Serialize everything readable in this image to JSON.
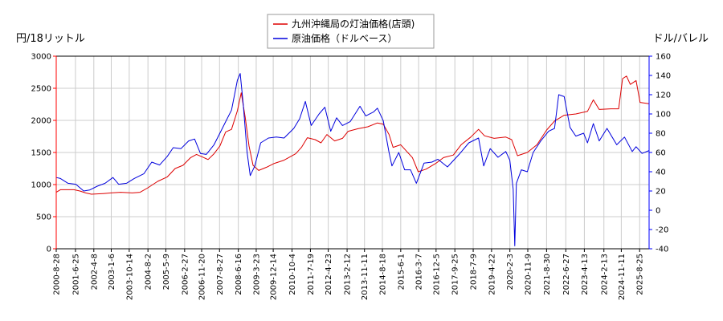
{
  "chart_data": {
    "type": "line",
    "legend": {
      "placement": "top-center",
      "entries": [
        "九州沖縄局の灯油価格(店頭)",
        "原油価格（ドルベース）"
      ]
    },
    "left_axis": {
      "unit_label": "円/18リットル",
      "ylim": [
        0,
        3000
      ],
      "ticks": [
        0,
        500,
        1000,
        1500,
        2000,
        2500,
        3000
      ],
      "color": "#ff0000"
    },
    "right_axis": {
      "unit_label": "ドル/バレル",
      "ylim": [
        -40,
        160
      ],
      "ticks": [
        -40,
        -20,
        0,
        20,
        40,
        60,
        80,
        100,
        120,
        140,
        160
      ],
      "color": "#0000ff"
    },
    "x_axis": {
      "range": [
        "2000-08-28",
        "2026-01-20"
      ],
      "ticks": [
        "2000-8-28",
        "2001-6-25",
        "2002-4-8",
        "2003-1-6",
        "2003-10-14",
        "2004-8-2",
        "2005-5-9",
        "2006-2-27",
        "2006-11-20",
        "2007-8-27",
        "2008-6-16",
        "2009-3-23",
        "2009-12-14",
        "2010-10-4",
        "2011-7-19",
        "2012-4-23",
        "2013-2-12",
        "2013-11-11",
        "2014-8-18",
        "2015-6-1",
        "2016-3-7",
        "2016-12-5",
        "2017-9-25",
        "2018-7-9",
        "2019-4-22",
        "2020-2-3",
        "2020-11-9",
        "2021-8-30",
        "2022-6-27",
        "2023-4-13",
        "2024-2-13",
        "2024-11-11",
        "2025-8-25"
      ]
    },
    "grid": true,
    "series": [
      {
        "name": "九州沖縄局の灯油価格(店頭)",
        "axis": "left",
        "color": "#dd0000",
        "points": [
          [
            "2000-08-28",
            880
          ],
          [
            "2000-11-01",
            920
          ],
          [
            "2001-06-01",
            920
          ],
          [
            "2001-09-01",
            900
          ],
          [
            "2001-12-01",
            870
          ],
          [
            "2002-03-01",
            850
          ],
          [
            "2002-09-01",
            860
          ],
          [
            "2003-01-01",
            870
          ],
          [
            "2003-06-01",
            880
          ],
          [
            "2003-12-01",
            870
          ],
          [
            "2004-04-01",
            880
          ],
          [
            "2004-08-01",
            950
          ],
          [
            "2005-01-01",
            1050
          ],
          [
            "2005-06-01",
            1120
          ],
          [
            "2005-10-01",
            1250
          ],
          [
            "2006-02-01",
            1300
          ],
          [
            "2006-06-01",
            1420
          ],
          [
            "2006-09-01",
            1470
          ],
          [
            "2006-12-01",
            1430
          ],
          [
            "2007-03-01",
            1390
          ],
          [
            "2007-06-01",
            1480
          ],
          [
            "2007-09-01",
            1600
          ],
          [
            "2007-12-01",
            1820
          ],
          [
            "2008-03-01",
            1860
          ],
          [
            "2008-06-01",
            2150
          ],
          [
            "2008-08-01",
            2430
          ],
          [
            "2008-10-01",
            2050
          ],
          [
            "2008-12-01",
            1600
          ],
          [
            "2009-02-01",
            1300
          ],
          [
            "2009-05-01",
            1220
          ],
          [
            "2009-09-01",
            1270
          ],
          [
            "2010-01-01",
            1330
          ],
          [
            "2010-06-01",
            1380
          ],
          [
            "2010-12-01",
            1480
          ],
          [
            "2011-03-01",
            1580
          ],
          [
            "2011-06-01",
            1730
          ],
          [
            "2011-10-01",
            1700
          ],
          [
            "2012-01-01",
            1650
          ],
          [
            "2012-04-01",
            1780
          ],
          [
            "2012-08-01",
            1680
          ],
          [
            "2012-12-01",
            1720
          ],
          [
            "2013-03-01",
            1830
          ],
          [
            "2013-08-01",
            1870
          ],
          [
            "2014-01-01",
            1900
          ],
          [
            "2014-06-01",
            1960
          ],
          [
            "2014-09-01",
            1940
          ],
          [
            "2014-12-01",
            1780
          ],
          [
            "2015-02-01",
            1580
          ],
          [
            "2015-06-01",
            1620
          ],
          [
            "2015-09-01",
            1520
          ],
          [
            "2015-12-01",
            1420
          ],
          [
            "2016-03-01",
            1200
          ],
          [
            "2016-07-01",
            1240
          ],
          [
            "2016-12-01",
            1330
          ],
          [
            "2017-04-01",
            1420
          ],
          [
            "2017-09-01",
            1460
          ],
          [
            "2018-01-01",
            1620
          ],
          [
            "2018-06-01",
            1740
          ],
          [
            "2018-10-01",
            1860
          ],
          [
            "2019-01-01",
            1760
          ],
          [
            "2019-06-01",
            1720
          ],
          [
            "2019-12-01",
            1740
          ],
          [
            "2020-03-01",
            1700
          ],
          [
            "2020-06-01",
            1450
          ],
          [
            "2020-11-01",
            1500
          ],
          [
            "2021-04-01",
            1620
          ],
          [
            "2021-09-01",
            1850
          ],
          [
            "2022-01-01",
            1990
          ],
          [
            "2022-06-01",
            2080
          ],
          [
            "2022-12-01",
            2100
          ],
          [
            "2023-06-01",
            2140
          ],
          [
            "2023-09-01",
            2320
          ],
          [
            "2023-12-01",
            2170
          ],
          [
            "2024-06-01",
            2180
          ],
          [
            "2024-10-01",
            2180
          ],
          [
            "2024-12-01",
            2650
          ],
          [
            "2025-02-01",
            2690
          ],
          [
            "2025-04-01",
            2560
          ],
          [
            "2025-07-01",
            2620
          ],
          [
            "2025-09-01",
            2280
          ],
          [
            "2026-01-20",
            2260
          ]
        ]
      },
      {
        "name": "原油価格（ドルベース）",
        "axis": "right",
        "color": "#0000dd",
        "points": [
          [
            "2000-08-28",
            34
          ],
          [
            "2000-11-01",
            33
          ],
          [
            "2001-03-01",
            28
          ],
          [
            "2001-07-01",
            27
          ],
          [
            "2001-11-01",
            20
          ],
          [
            "2002-02-01",
            21
          ],
          [
            "2002-06-01",
            25
          ],
          [
            "2002-10-01",
            28
          ],
          [
            "2003-02-01",
            34
          ],
          [
            "2003-05-01",
            27
          ],
          [
            "2003-09-01",
            28
          ],
          [
            "2004-01-01",
            33
          ],
          [
            "2004-06-01",
            38
          ],
          [
            "2004-10-01",
            50
          ],
          [
            "2005-02-01",
            47
          ],
          [
            "2005-06-01",
            56
          ],
          [
            "2005-09-01",
            65
          ],
          [
            "2006-01-01",
            64
          ],
          [
            "2006-05-01",
            72
          ],
          [
            "2006-08-01",
            74
          ],
          [
            "2006-11-01",
            59
          ],
          [
            "2007-02-01",
            58
          ],
          [
            "2007-06-01",
            68
          ],
          [
            "2007-09-01",
            80
          ],
          [
            "2007-12-01",
            92
          ],
          [
            "2008-03-01",
            104
          ],
          [
            "2008-06-01",
            135
          ],
          [
            "2008-07-15",
            142
          ],
          [
            "2008-09-01",
            110
          ],
          [
            "2008-11-01",
            60
          ],
          [
            "2008-12-20",
            36
          ],
          [
            "2009-03-01",
            46
          ],
          [
            "2009-06-01",
            70
          ],
          [
            "2009-10-01",
            75
          ],
          [
            "2010-02-01",
            76
          ],
          [
            "2010-06-01",
            75
          ],
          [
            "2010-11-01",
            85
          ],
          [
            "2011-02-01",
            95
          ],
          [
            "2011-05-01",
            113
          ],
          [
            "2011-08-01",
            88
          ],
          [
            "2011-12-01",
            100
          ],
          [
            "2012-03-01",
            107
          ],
          [
            "2012-06-01",
            82
          ],
          [
            "2012-09-01",
            96
          ],
          [
            "2012-12-01",
            88
          ],
          [
            "2013-04-01",
            92
          ],
          [
            "2013-09-01",
            108
          ],
          [
            "2013-12-01",
            98
          ],
          [
            "2014-04-01",
            102
          ],
          [
            "2014-06-01",
            106
          ],
          [
            "2014-09-01",
            93
          ],
          [
            "2014-12-01",
            60
          ],
          [
            "2015-01-15",
            46
          ],
          [
            "2015-05-01",
            60
          ],
          [
            "2015-08-01",
            42
          ],
          [
            "2015-11-01",
            42
          ],
          [
            "2016-02-01",
            28
          ],
          [
            "2016-06-01",
            49
          ],
          [
            "2016-10-01",
            50
          ],
          [
            "2017-01-01",
            53
          ],
          [
            "2017-06-01",
            45
          ],
          [
            "2017-12-01",
            58
          ],
          [
            "2018-05-01",
            70
          ],
          [
            "2018-10-01",
            75
          ],
          [
            "2018-12-20",
            46
          ],
          [
            "2019-04-01",
            64
          ],
          [
            "2019-08-01",
            55
          ],
          [
            "2019-12-01",
            61
          ],
          [
            "2020-02-01",
            52
          ],
          [
            "2020-03-25",
            22
          ],
          [
            "2020-04-20",
            -37
          ],
          [
            "2020-05-15",
            28
          ],
          [
            "2020-08-01",
            42
          ],
          [
            "2020-11-01",
            40
          ],
          [
            "2021-02-01",
            60
          ],
          [
            "2021-06-01",
            72
          ],
          [
            "2021-10-01",
            82
          ],
          [
            "2022-01-01",
            85
          ],
          [
            "2022-03-08",
            120
          ],
          [
            "2022-06-01",
            118
          ],
          [
            "2022-09-01",
            86
          ],
          [
            "2022-12-01",
            77
          ],
          [
            "2023-04-01",
            80
          ],
          [
            "2023-06-01",
            70
          ],
          [
            "2023-09-01",
            90
          ],
          [
            "2023-12-01",
            72
          ],
          [
            "2024-04-01",
            85
          ],
          [
            "2024-09-01",
            68
          ],
          [
            "2025-01-01",
            76
          ],
          [
            "2025-05-01",
            61
          ],
          [
            "2025-07-01",
            66
          ],
          [
            "2025-10-01",
            59
          ],
          [
            "2026-01-20",
            62
          ]
        ]
      }
    ]
  }
}
